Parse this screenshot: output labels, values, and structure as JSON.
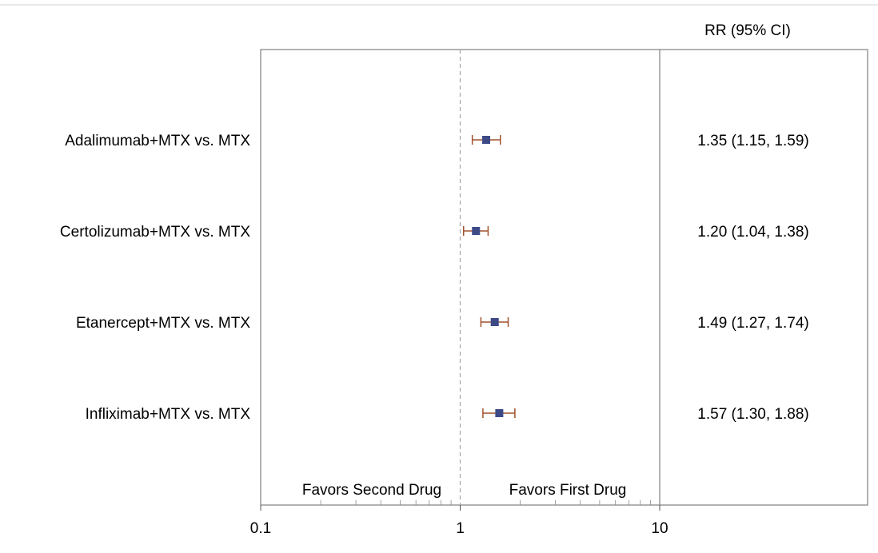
{
  "chart_data": {
    "type": "forest",
    "scale": "log",
    "xlim": [
      0.1,
      100
    ],
    "x_ticks": [
      "0.1",
      "1",
      "10"
    ],
    "x_tick_values": [
      0.1,
      1,
      10
    ],
    "reference_line": 1,
    "column_header": "RR (95% CI)",
    "favors_left": "Favors Second Drug",
    "favors_right": "Favors First Drug",
    "rows": [
      {
        "label": "Adalimumab+MTX vs. MTX",
        "rr": 1.35,
        "lo": 1.15,
        "hi": 1.59,
        "ci_text": "1.35 (1.15, 1.59)"
      },
      {
        "label": "Certolizumab+MTX vs. MTX",
        "rr": 1.2,
        "lo": 1.04,
        "hi": 1.38,
        "ci_text": "1.20 (1.04, 1.38)"
      },
      {
        "label": "Etanercept+MTX vs. MTX",
        "rr": 1.49,
        "lo": 1.27,
        "hi": 1.74,
        "ci_text": "1.49 (1.27, 1.74)"
      },
      {
        "label": "Infliximab+MTX vs. MTX",
        "rr": 1.57,
        "lo": 1.3,
        "hi": 1.88,
        "ci_text": "1.57 (1.30, 1.88)"
      }
    ],
    "colors": {
      "point": "#3d4a86",
      "ci": "#a0522d",
      "reference": "#a6a6a6",
      "frame": "#7f7f7f"
    },
    "grid": false
  }
}
